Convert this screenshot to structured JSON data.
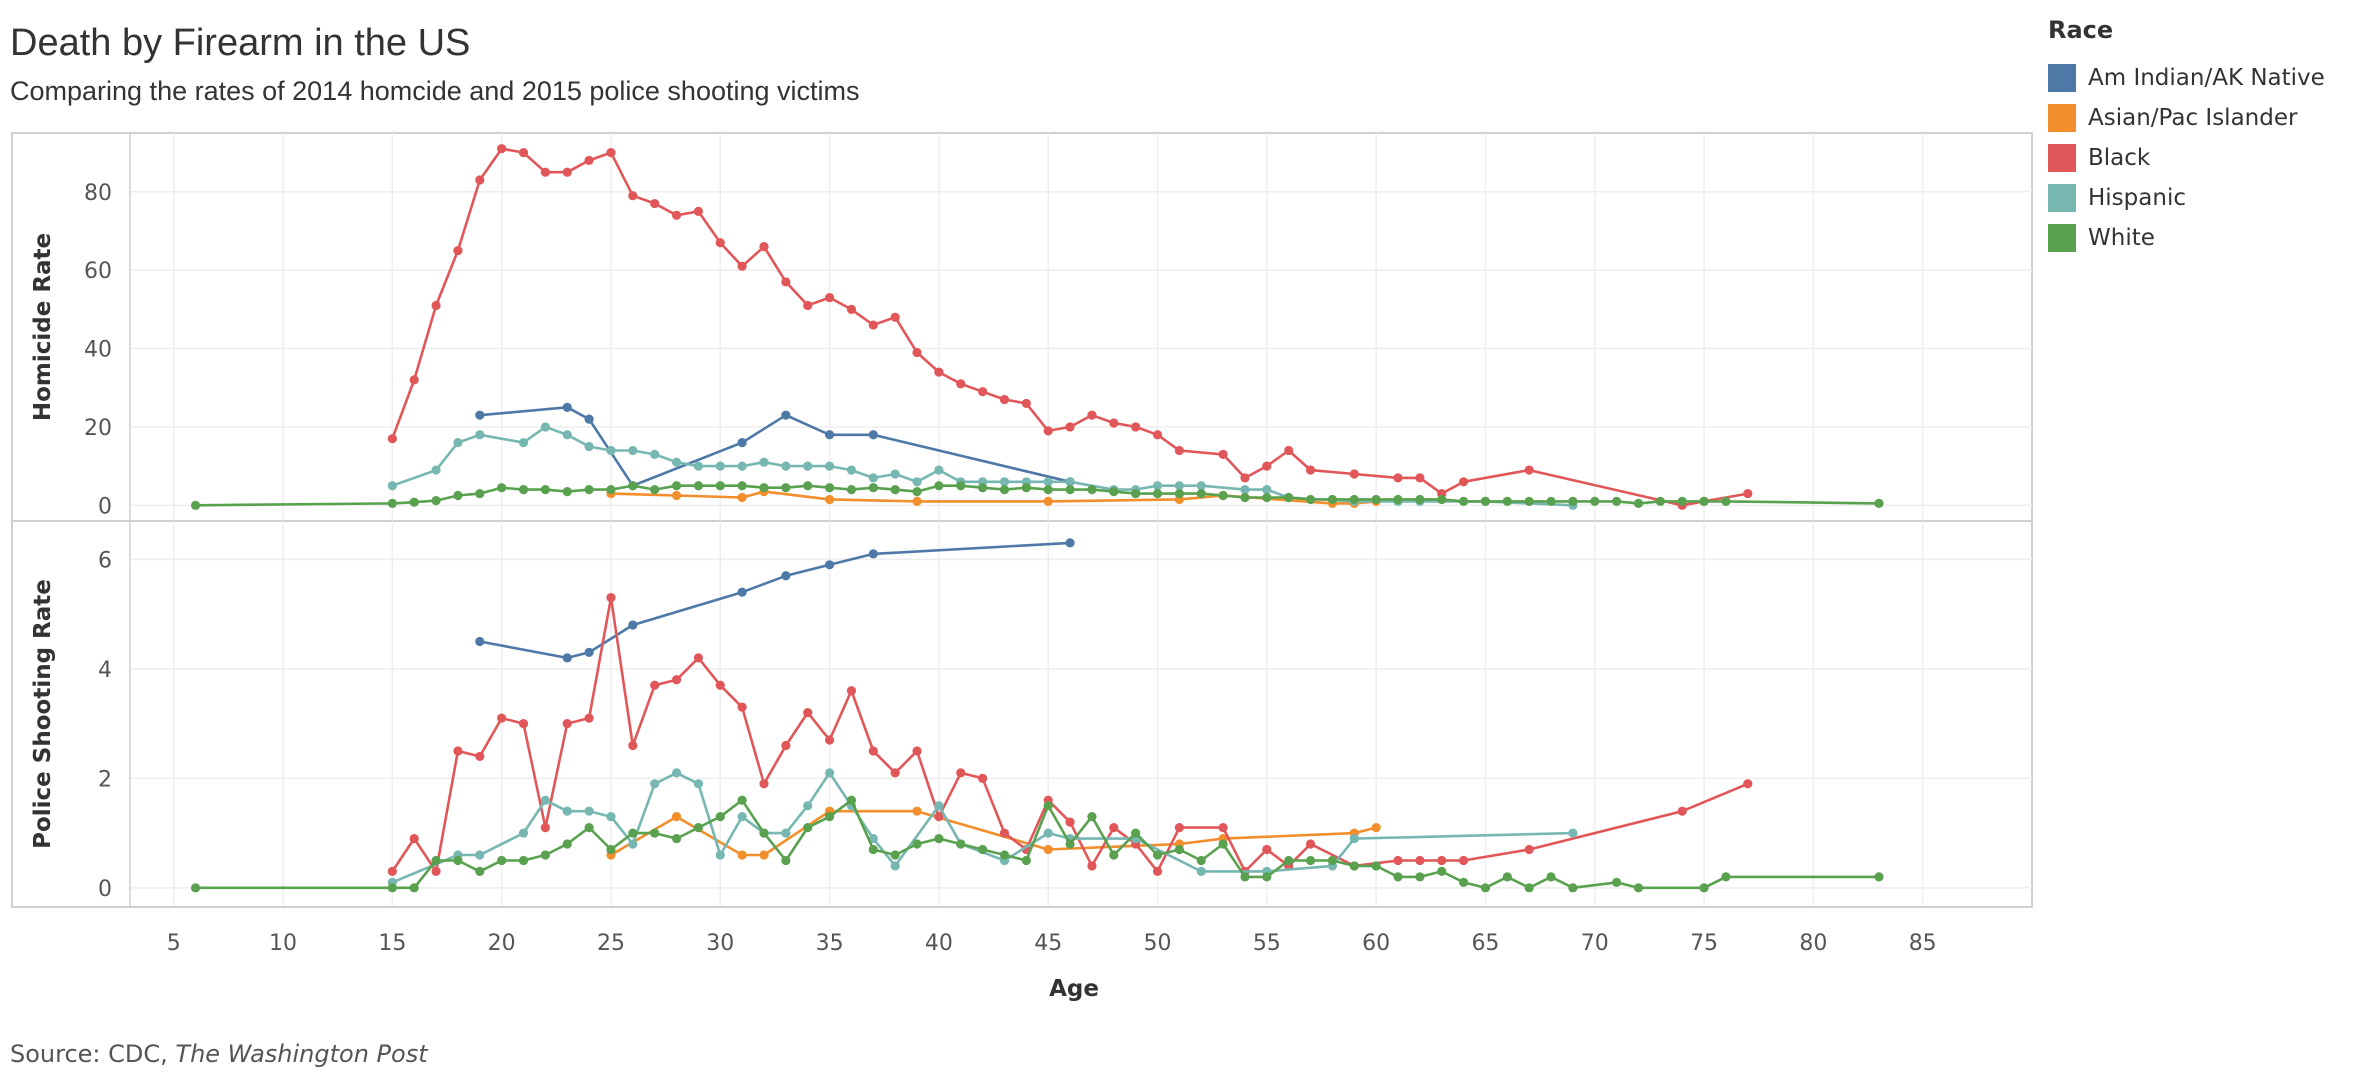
{
  "title": "Death by Firearm in the US",
  "subtitle": "Comparing the rates of 2014 homcide and 2015 police shooting victims",
  "source_prefix": "Source: CDC, ",
  "source_italic": "The Washington Post",
  "legend": {
    "title": "Race",
    "items": [
      {
        "label": "Am Indian/AK Native",
        "color": "#4e79a7"
      },
      {
        "label": "Asian/Pac Islander",
        "color": "#f28e2b"
      },
      {
        "label": "Black",
        "color": "#e15759"
      },
      {
        "label": "Hispanic",
        "color": "#76b7b2"
      },
      {
        "label": "White",
        "color": "#59a14f"
      }
    ]
  },
  "chart_data": {
    "type": "line",
    "xlabel": "Age",
    "xlim": [
      3,
      90
    ],
    "xticks": [
      5,
      10,
      15,
      20,
      25,
      30,
      35,
      40,
      45,
      50,
      55,
      60,
      65,
      70,
      75,
      80,
      85
    ],
    "grid": true,
    "legend_placement": "top-right",
    "panels": [
      {
        "ylabel": "Homicide Rate",
        "ylim": [
          -4,
          95
        ],
        "yticks": [
          0,
          20,
          40,
          60,
          80
        ],
        "series": [
          {
            "name": "Am Indian/AK Native",
            "x": [
              19,
              23,
              24,
              26,
              31,
              33,
              35,
              37,
              46
            ],
            "y": [
              23,
              25,
              22,
              5,
              16,
              23,
              18,
              18,
              6
            ]
          },
          {
            "name": "Asian/Pac Islander",
            "x": [
              25,
              28,
              31,
              32,
              35,
              39,
              45,
              51,
              53,
              58,
              59,
              60
            ],
            "y": [
              3,
              2.5,
              2,
              3.5,
              1.5,
              1,
              1,
              1.5,
              2.5,
              0.5,
              0.5,
              1
            ]
          },
          {
            "name": "Black",
            "x": [
              15,
              16,
              17,
              18,
              19,
              20,
              21,
              22,
              23,
              24,
              25,
              26,
              27,
              28,
              29,
              30,
              31,
              32,
              33,
              34,
              35,
              36,
              37,
              38,
              39,
              40,
              41,
              42,
              43,
              44,
              45,
              46,
              47,
              48,
              49,
              50,
              51,
              53,
              54,
              55,
              56,
              57,
              59,
              61,
              62,
              63,
              64,
              67,
              74,
              75,
              77
            ],
            "y": [
              17,
              32,
              51,
              65,
              83,
              91,
              90,
              85,
              85,
              88,
              90,
              79,
              77,
              74,
              75,
              67,
              61,
              66,
              57,
              51,
              53,
              50,
              46,
              48,
              39,
              34,
              31,
              29,
              27,
              26,
              19,
              20,
              23,
              21,
              20,
              18,
              14,
              13,
              7,
              10,
              14,
              9,
              8,
              7,
              7,
              3,
              6,
              9,
              0,
              1,
              3
            ]
          },
          {
            "name": "Hispanic",
            "x": [
              15,
              17,
              18,
              19,
              21,
              22,
              23,
              24,
              25,
              26,
              27,
              28,
              29,
              30,
              31,
              32,
              33,
              34,
              35,
              36,
              37,
              38,
              39,
              40,
              41,
              42,
              43,
              44,
              45,
              46,
              48,
              49,
              50,
              51,
              52,
              54,
              55,
              56,
              59,
              61,
              62,
              65,
              69
            ],
            "y": [
              5,
              9,
              16,
              18,
              16,
              20,
              18,
              15,
              14,
              14,
              13,
              11,
              10,
              10,
              10,
              11,
              10,
              10,
              10,
              9,
              7,
              8,
              6,
              9,
              6,
              6,
              6,
              6,
              6,
              6,
              4,
              4,
              5,
              5,
              5,
              4,
              4,
              2,
              1,
              1,
              1,
              1,
              0
            ]
          },
          {
            "name": "White",
            "x": [
              6,
              15,
              16,
              17,
              18,
              19,
              20,
              21,
              22,
              23,
              24,
              25,
              26,
              27,
              28,
              29,
              30,
              31,
              32,
              33,
              34,
              35,
              36,
              37,
              38,
              39,
              40,
              41,
              42,
              43,
              44,
              45,
              46,
              47,
              48,
              49,
              50,
              51,
              52,
              53,
              54,
              55,
              56,
              57,
              58,
              59,
              60,
              61,
              62,
              63,
              64,
              65,
              66,
              67,
              68,
              69,
              70,
              71,
              72,
              73,
              74,
              75,
              76,
              83
            ],
            "y": [
              0,
              0.5,
              0.8,
              1.2,
              2.5,
              3,
              4.5,
              4,
              4,
              3.5,
              4,
              4,
              5,
              4,
              5,
              5,
              5,
              5,
              4.5,
              4.5,
              5,
              4.5,
              4,
              4.5,
              4,
              3.5,
              5,
              5,
              4.5,
              4,
              4.5,
              4,
              4,
              4,
              3.5,
              3,
              3,
              3,
              3,
              2.5,
              2,
              2,
              2,
              1.5,
              1.5,
              1.5,
              1.5,
              1.5,
              1.5,
              1.5,
              1,
              1,
              1,
              1,
              1,
              1,
              1,
              1,
              0.5,
              1,
              1,
              1,
              1,
              0.5
            ]
          }
        ]
      },
      {
        "ylabel": "Police Shooting Rate",
        "ylim": [
          -0.35,
          6.7
        ],
        "yticks": [
          0,
          2,
          4,
          6
        ],
        "series": [
          {
            "name": "Am Indian/AK Native",
            "x": [
              19,
              23,
              24,
              26,
              31,
              33,
              35,
              37,
              46
            ],
            "y": [
              4.5,
              4.2,
              4.3,
              4.8,
              5.4,
              5.7,
              5.9,
              6.1,
              6.3
            ]
          },
          {
            "name": "Asian/Pac Islander",
            "x": [
              25,
              28,
              31,
              32,
              35,
              39,
              45,
              51,
              53,
              59,
              60
            ],
            "y": [
              0.6,
              1.3,
              0.6,
              0.6,
              1.4,
              1.4,
              0.7,
              0.8,
              0.9,
              1,
              1.1
            ]
          },
          {
            "name": "Black",
            "x": [
              15,
              16,
              17,
              18,
              19,
              20,
              21,
              22,
              23,
              24,
              25,
              26,
              27,
              28,
              29,
              30,
              31,
              32,
              33,
              34,
              35,
              36,
              37,
              38,
              39,
              40,
              41,
              42,
              43,
              44,
              45,
              46,
              47,
              48,
              49,
              50,
              51,
              53,
              54,
              55,
              56,
              57,
              59,
              61,
              62,
              63,
              64,
              67,
              74,
              77
            ],
            "y": [
              0.3,
              0.9,
              0.3,
              2.5,
              2.4,
              3.1,
              3.0,
              1.1,
              3.0,
              3.1,
              5.3,
              2.6,
              3.7,
              3.8,
              4.2,
              3.7,
              3.3,
              1.9,
              2.6,
              3.2,
              2.7,
              3.6,
              2.5,
              2.1,
              2.5,
              1.3,
              2.1,
              2.0,
              1.0,
              0.7,
              1.6,
              1.2,
              0.4,
              1.1,
              0.8,
              0.3,
              1.1,
              1.1,
              0.3,
              0.7,
              0.4,
              0.8,
              0.4,
              0.5,
              0.5,
              0.5,
              0.5,
              0.7,
              1.4,
              1.9
            ]
          },
          {
            "name": "Hispanic",
            "x": [
              15,
              18,
              19,
              21,
              22,
              23,
              24,
              25,
              26,
              27,
              28,
              29,
              30,
              31,
              32,
              33,
              34,
              35,
              36,
              37,
              38,
              40,
              41,
              43,
              45,
              46,
              49,
              52,
              55,
              58,
              59,
              69
            ],
            "y": [
              0.1,
              0.6,
              0.6,
              1.0,
              1.6,
              1.4,
              1.4,
              1.3,
              0.8,
              1.9,
              2.1,
              1.9,
              0.6,
              1.3,
              1.0,
              1.0,
              1.5,
              2.1,
              1.5,
              0.9,
              0.4,
              1.5,
              0.8,
              0.5,
              1.0,
              0.9,
              0.9,
              0.3,
              0.3,
              0.4,
              0.9,
              1.0
            ]
          },
          {
            "name": "White",
            "x": [
              6,
              15,
              16,
              17,
              18,
              19,
              20,
              21,
              22,
              23,
              24,
              25,
              26,
              27,
              28,
              29,
              30,
              31,
              32,
              33,
              34,
              35,
              36,
              37,
              38,
              39,
              40,
              41,
              42,
              43,
              44,
              45,
              46,
              47,
              48,
              49,
              50,
              51,
              52,
              53,
              54,
              55,
              56,
              57,
              58,
              59,
              60,
              61,
              62,
              63,
              64,
              65,
              66,
              67,
              68,
              69,
              71,
              72,
              75,
              76,
              83
            ],
            "y": [
              0.0,
              0.0,
              0.0,
              0.5,
              0.5,
              0.3,
              0.5,
              0.5,
              0.6,
              0.8,
              1.1,
              0.7,
              1.0,
              1.0,
              0.9,
              1.1,
              1.3,
              1.6,
              1.0,
              0.5,
              1.1,
              1.3,
              1.6,
              0.7,
              0.6,
              0.8,
              0.9,
              0.8,
              0.7,
              0.6,
              0.5,
              1.5,
              0.8,
              1.3,
              0.6,
              1.0,
              0.6,
              0.7,
              0.5,
              0.8,
              0.2,
              0.2,
              0.5,
              0.5,
              0.5,
              0.4,
              0.4,
              0.2,
              0.2,
              0.3,
              0.1,
              0.0,
              0.2,
              0.0,
              0.2,
              0.0,
              0.1,
              0.0,
              0.0,
              0.2,
              0.2
            ]
          }
        ]
      }
    ]
  }
}
